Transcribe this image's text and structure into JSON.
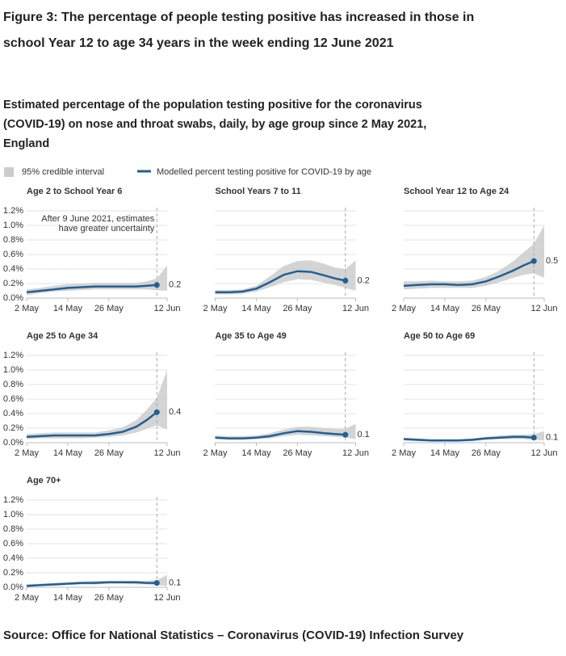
{
  "header": {
    "title": "Figure 3: The percentage of people testing positive has increased in those in school Year 12 to age 34 years in the week ending 12 June 2021",
    "subtitle": "Estimated percentage of the population testing positive for the coronavirus (COVID-19) on nose and throat swabs, daily, by age group since 2 May 2021, England"
  },
  "legend": [
    {
      "label": "95% credible interval",
      "color": "#cccccc"
    },
    {
      "label": "Modelled percent testing positive for COVID-19 by age",
      "color": "#206095"
    }
  ],
  "source": "Source: Office for National Statistics – Coronavirus (COVID-19) Infection Survey",
  "chart_data": [
    {
      "type": "line",
      "title": "Age 2 to School Year 6",
      "x": [
        "2021-05-02",
        "2021-05-06",
        "2021-05-10",
        "2021-05-14",
        "2021-05-18",
        "2021-05-22",
        "2021-05-26",
        "2021-05-30",
        "2021-06-03",
        "2021-06-06",
        "2021-06-09",
        "2021-06-12"
      ],
      "xlim": [
        "2021-05-02",
        "2021-06-12"
      ],
      "xticks": [
        {
          "value": "2021-05-02",
          "label": "2 May"
        },
        {
          "value": "2021-05-14",
          "label": "14 May"
        },
        {
          "value": "2021-05-26",
          "label": "26 May"
        },
        {
          "value": "2021-06-12",
          "label": "12 Jun"
        }
      ],
      "ylim": [
        0,
        1.2
      ],
      "ytick_labels": true,
      "yticks": [
        {
          "value": 0,
          "label": "0.0%"
        },
        {
          "value": 0.2,
          "label": "0.2%"
        },
        {
          "value": 0.4,
          "label": "0.4%"
        },
        {
          "value": 0.6,
          "label": "0.6%"
        },
        {
          "value": 0.8,
          "label": "0.8%"
        },
        {
          "value": 1.0,
          "label": "1.0%"
        },
        {
          "value": 1.2,
          "label": "1.2%"
        }
      ],
      "forecast_start": "2021-06-09",
      "annotation": [
        "After 9 June 2021, estimates",
        "have greater uncertainty"
      ],
      "series": [
        {
          "color": "#cccccc",
          "upper": [
            0.12,
            0.14,
            0.17,
            0.19,
            0.2,
            0.21,
            0.21,
            0.21,
            0.21,
            0.23,
            0.27,
            0.45
          ],
          "lower": [
            0.04,
            0.07,
            0.09,
            0.1,
            0.11,
            0.12,
            0.12,
            0.12,
            0.12,
            0.12,
            0.11,
            0.1
          ]
        },
        {
          "color": "#206095",
          "values": [
            0.08,
            0.1,
            0.12,
            0.14,
            0.15,
            0.16,
            0.16,
            0.16,
            0.16,
            0.17,
            0.18,
            null
          ],
          "value_labels": [
            null,
            null,
            null,
            null,
            null,
            null,
            null,
            null,
            null,
            null,
            "0.2",
            null
          ]
        }
      ]
    },
    {
      "type": "line",
      "title": "School Years 7 to 11",
      "x": [
        "2021-05-02",
        "2021-05-06",
        "2021-05-10",
        "2021-05-14",
        "2021-05-18",
        "2021-05-22",
        "2021-05-26",
        "2021-05-30",
        "2021-06-03",
        "2021-06-06",
        "2021-06-09",
        "2021-06-12"
      ],
      "xlim": [
        "2021-05-02",
        "2021-06-12"
      ],
      "xticks": [
        {
          "value": "2021-05-02",
          "label": "2 May"
        },
        {
          "value": "2021-05-14",
          "label": "14 May"
        },
        {
          "value": "2021-05-26",
          "label": "26 May"
        },
        {
          "value": "2021-06-12",
          "label": "12 Jun"
        }
      ],
      "ylim": [
        0,
        1.2
      ],
      "ytick_labels": false,
      "yticks": [
        0,
        0.2,
        0.4,
        0.6,
        0.8,
        1.0,
        1.2
      ],
      "forecast_start": "2021-06-09",
      "series": [
        {
          "color": "#cccccc",
          "upper": [
            0.11,
            0.11,
            0.12,
            0.17,
            0.3,
            0.44,
            0.51,
            0.52,
            0.47,
            0.42,
            0.4,
            0.52
          ],
          "lower": [
            0.05,
            0.05,
            0.06,
            0.09,
            0.15,
            0.22,
            0.26,
            0.25,
            0.21,
            0.18,
            0.14,
            0.1
          ]
        },
        {
          "color": "#206095",
          "values": [
            0.08,
            0.08,
            0.09,
            0.13,
            0.22,
            0.32,
            0.37,
            0.36,
            0.31,
            0.27,
            0.24,
            null
          ],
          "value_labels": [
            null,
            null,
            null,
            null,
            null,
            null,
            null,
            null,
            null,
            null,
            "0.2",
            null
          ]
        }
      ]
    },
    {
      "type": "line",
      "title": "School Year 12 to Age 24",
      "x": [
        "2021-05-02",
        "2021-05-06",
        "2021-05-10",
        "2021-05-14",
        "2021-05-18",
        "2021-05-22",
        "2021-05-26",
        "2021-05-30",
        "2021-06-03",
        "2021-06-06",
        "2021-06-09",
        "2021-06-12"
      ],
      "xlim": [
        "2021-05-02",
        "2021-06-12"
      ],
      "xticks": [
        {
          "value": "2021-05-02",
          "label": "2 May"
        },
        {
          "value": "2021-05-14",
          "label": "14 May"
        },
        {
          "value": "2021-05-26",
          "label": "26 May"
        },
        {
          "value": "2021-06-12",
          "label": "12 Jun"
        }
      ],
      "ylim": [
        0,
        1.2
      ],
      "ytick_labels": false,
      "yticks": [
        0,
        0.2,
        0.4,
        0.6,
        0.8,
        1.0,
        1.2
      ],
      "forecast_start": "2021-06-09",
      "series": [
        {
          "color": "#cccccc",
          "upper": [
            0.23,
            0.23,
            0.24,
            0.23,
            0.23,
            0.24,
            0.29,
            0.38,
            0.51,
            0.63,
            0.75,
            1.0
          ],
          "lower": [
            0.12,
            0.13,
            0.14,
            0.14,
            0.14,
            0.14,
            0.17,
            0.22,
            0.28,
            0.32,
            0.34,
            0.28
          ]
        },
        {
          "color": "#206095",
          "values": [
            0.17,
            0.18,
            0.19,
            0.19,
            0.18,
            0.19,
            0.23,
            0.3,
            0.38,
            0.45,
            0.51,
            null
          ],
          "value_labels": [
            null,
            null,
            null,
            null,
            null,
            null,
            null,
            null,
            null,
            null,
            "0.5",
            null
          ]
        }
      ]
    },
    {
      "type": "line",
      "title": "Age 25 to Age 34",
      "x": [
        "2021-05-02",
        "2021-05-06",
        "2021-05-10",
        "2021-05-14",
        "2021-05-18",
        "2021-05-22",
        "2021-05-26",
        "2021-05-30",
        "2021-06-03",
        "2021-06-06",
        "2021-06-09",
        "2021-06-12"
      ],
      "xlim": [
        "2021-05-02",
        "2021-06-12"
      ],
      "xticks": [
        {
          "value": "2021-05-02",
          "label": "2 May"
        },
        {
          "value": "2021-05-14",
          "label": "14 May"
        },
        {
          "value": "2021-05-26",
          "label": "26 May"
        },
        {
          "value": "2021-06-12",
          "label": "12 Jun"
        }
      ],
      "ylim": [
        0,
        1.2
      ],
      "ytick_labels": true,
      "yticks": [
        {
          "value": 0,
          "label": "0.0%"
        },
        {
          "value": 0.2,
          "label": "0.2%"
        },
        {
          "value": 0.4,
          "label": "0.4%"
        },
        {
          "value": 0.6,
          "label": "0.6%"
        },
        {
          "value": 0.8,
          "label": "0.8%"
        },
        {
          "value": 1.0,
          "label": "1.0%"
        },
        {
          "value": 1.2,
          "label": "1.2%"
        }
      ],
      "forecast_start": "2021-06-09",
      "series": [
        {
          "color": "#cccccc",
          "upper": [
            0.12,
            0.13,
            0.14,
            0.14,
            0.14,
            0.14,
            0.17,
            0.21,
            0.31,
            0.45,
            0.62,
            1.0
          ],
          "lower": [
            0.05,
            0.06,
            0.06,
            0.06,
            0.06,
            0.07,
            0.08,
            0.1,
            0.14,
            0.19,
            0.24,
            0.18
          ]
        },
        {
          "color": "#206095",
          "values": [
            0.08,
            0.09,
            0.1,
            0.1,
            0.1,
            0.1,
            0.12,
            0.15,
            0.22,
            0.31,
            0.42,
            null
          ],
          "value_labels": [
            null,
            null,
            null,
            null,
            null,
            null,
            null,
            null,
            null,
            null,
            "0.4",
            null
          ]
        }
      ]
    },
    {
      "type": "line",
      "title": "Age 35 to Age 49",
      "x": [
        "2021-05-02",
        "2021-05-06",
        "2021-05-10",
        "2021-05-14",
        "2021-05-18",
        "2021-05-22",
        "2021-05-26",
        "2021-05-30",
        "2021-06-03",
        "2021-06-06",
        "2021-06-09",
        "2021-06-12"
      ],
      "xlim": [
        "2021-05-02",
        "2021-06-12"
      ],
      "xticks": [
        {
          "value": "2021-05-02",
          "label": "2 May"
        },
        {
          "value": "2021-05-14",
          "label": "14 May"
        },
        {
          "value": "2021-05-26",
          "label": "26 May"
        },
        {
          "value": "2021-06-12",
          "label": "12 Jun"
        }
      ],
      "ylim": [
        0,
        1.2
      ],
      "ytick_labels": false,
      "yticks": [
        0,
        0.2,
        0.4,
        0.6,
        0.8,
        1.0,
        1.2
      ],
      "forecast_start": "2021-06-09",
      "series": [
        {
          "color": "#cccccc",
          "upper": [
            0.1,
            0.09,
            0.09,
            0.1,
            0.13,
            0.18,
            0.22,
            0.22,
            0.2,
            0.19,
            0.19,
            0.26
          ],
          "lower": [
            0.05,
            0.04,
            0.04,
            0.05,
            0.06,
            0.09,
            0.11,
            0.1,
            0.09,
            0.08,
            0.07,
            0.05
          ]
        },
        {
          "color": "#206095",
          "values": [
            0.07,
            0.06,
            0.06,
            0.07,
            0.09,
            0.13,
            0.16,
            0.15,
            0.13,
            0.12,
            0.11,
            null
          ],
          "value_labels": [
            null,
            null,
            null,
            null,
            null,
            null,
            null,
            null,
            null,
            null,
            "0.1",
            null
          ]
        }
      ]
    },
    {
      "type": "line",
      "title": "Age 50 to Age 69",
      "x": [
        "2021-05-02",
        "2021-05-06",
        "2021-05-10",
        "2021-05-14",
        "2021-05-18",
        "2021-05-22",
        "2021-05-26",
        "2021-05-30",
        "2021-06-03",
        "2021-06-06",
        "2021-06-09",
        "2021-06-12"
      ],
      "xlim": [
        "2021-05-02",
        "2021-06-12"
      ],
      "xticks": [
        {
          "value": "2021-05-02",
          "label": "2 May"
        },
        {
          "value": "2021-05-14",
          "label": "14 May"
        },
        {
          "value": "2021-05-26",
          "label": "26 May"
        },
        {
          "value": "2021-06-12",
          "label": "12 Jun"
        }
      ],
      "ylim": [
        0,
        1.2
      ],
      "ytick_labels": false,
      "yticks": [
        0,
        0.2,
        0.4,
        0.6,
        0.8,
        1.0,
        1.2
      ],
      "forecast_start": "2021-06-09",
      "series": [
        {
          "color": "#cccccc",
          "upper": [
            0.07,
            0.06,
            0.05,
            0.05,
            0.05,
            0.06,
            0.08,
            0.1,
            0.11,
            0.11,
            0.12,
            0.16
          ],
          "lower": [
            0.03,
            0.02,
            0.02,
            0.02,
            0.02,
            0.02,
            0.04,
            0.05,
            0.05,
            0.05,
            0.04,
            0.03
          ]
        },
        {
          "color": "#206095",
          "values": [
            0.05,
            0.04,
            0.03,
            0.03,
            0.03,
            0.04,
            0.06,
            0.07,
            0.08,
            0.08,
            0.07,
            null
          ],
          "value_labels": [
            null,
            null,
            null,
            null,
            null,
            null,
            null,
            null,
            null,
            null,
            "0.1",
            null
          ]
        }
      ]
    },
    {
      "type": "line",
      "title": "Age 70+",
      "x": [
        "2021-05-02",
        "2021-05-06",
        "2021-05-10",
        "2021-05-14",
        "2021-05-18",
        "2021-05-22",
        "2021-05-26",
        "2021-05-30",
        "2021-06-03",
        "2021-06-06",
        "2021-06-09",
        "2021-06-12"
      ],
      "xlim": [
        "2021-05-02",
        "2021-06-12"
      ],
      "xticks": [
        {
          "value": "2021-05-02",
          "label": "2 May"
        },
        {
          "value": "2021-05-14",
          "label": "14 May"
        },
        {
          "value": "2021-05-26",
          "label": "26 May"
        },
        {
          "value": "2021-06-12",
          "label": "12 Jun"
        }
      ],
      "ylim": [
        0,
        1.2
      ],
      "ytick_labels": true,
      "yticks": [
        {
          "value": 0,
          "label": "0.0%"
        },
        {
          "value": 0.2,
          "label": "0.2%"
        },
        {
          "value": 0.4,
          "label": "0.4%"
        },
        {
          "value": 0.6,
          "label": "0.6%"
        },
        {
          "value": 0.8,
          "label": "0.8%"
        },
        {
          "value": 1.0,
          "label": "1.0%"
        },
        {
          "value": 1.2,
          "label": "1.2%"
        }
      ],
      "forecast_start": "2021-06-09",
      "series": [
        {
          "color": "#cccccc",
          "upper": [
            0.04,
            0.05,
            0.06,
            0.07,
            0.08,
            0.09,
            0.09,
            0.09,
            0.09,
            0.09,
            0.1,
            0.17
          ],
          "lower": [
            0.01,
            0.02,
            0.02,
            0.03,
            0.04,
            0.04,
            0.05,
            0.05,
            0.04,
            0.04,
            0.03,
            0.02
          ]
        },
        {
          "color": "#206095",
          "values": [
            0.02,
            0.03,
            0.04,
            0.05,
            0.06,
            0.06,
            0.07,
            0.07,
            0.07,
            0.06,
            0.06,
            null
          ],
          "value_labels": [
            null,
            null,
            null,
            null,
            null,
            null,
            null,
            null,
            null,
            null,
            "0.1",
            null
          ]
        }
      ]
    }
  ]
}
